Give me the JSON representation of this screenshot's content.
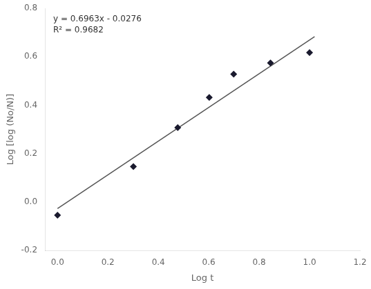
{
  "chart_data": {
    "type": "scatter",
    "x_label": "Log t",
    "y_label": "Log [log (No/N)]",
    "annotations": [
      "y = 0.6963x - 0.0276",
      "R² = 0.9682"
    ],
    "series": [
      {
        "type": "scatter",
        "color": "#1a1a2e",
        "marker": "diamond",
        "x": [
          0.0,
          0.301,
          0.477,
          0.602,
          0.699,
          0.845,
          1.0
        ],
        "values": [
          -0.055,
          0.146,
          0.307,
          0.432,
          0.528,
          0.574,
          0.617
        ]
      },
      {
        "type": "line",
        "color": "#555555",
        "line_style": "solid",
        "x": [
          0.0,
          1.02
        ],
        "values": [
          -0.0276,
          0.682626
        ]
      }
    ],
    "xlim": [
      -0.05,
      1.2
    ],
    "ylim": [
      -0.2,
      0.8
    ],
    "xticks": [
      {
        "value": 0.0,
        "label": "0.0"
      },
      0.2,
      0.4,
      0.6,
      0.8,
      {
        "value": 1.0,
        "label": "1.0"
      },
      1.2
    ],
    "yticks": [
      -0.2,
      {
        "value": 0.0,
        "label": "0.0"
      },
      0.2,
      0.4,
      0.6,
      0.8
    ],
    "grid": false,
    "legend": false
  }
}
